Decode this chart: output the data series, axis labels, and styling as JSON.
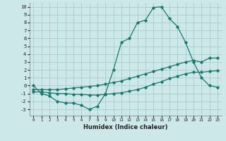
{
  "xlabel": "Humidex (Indice chaleur)",
  "bg_color": "#cce8e8",
  "grid_color": "#aacccc",
  "line_color": "#1a7a6e",
  "xlim": [
    -0.5,
    23.5
  ],
  "ylim": [
    -3.8,
    10.5
  ],
  "xticks": [
    0,
    1,
    2,
    3,
    4,
    5,
    6,
    7,
    8,
    9,
    10,
    11,
    12,
    13,
    14,
    15,
    16,
    17,
    18,
    19,
    20,
    21,
    22,
    23
  ],
  "yticks": [
    -3,
    -2,
    -1,
    0,
    1,
    2,
    3,
    4,
    5,
    6,
    7,
    8,
    9,
    10
  ],
  "line1_x": [
    0,
    1,
    2,
    3,
    4,
    5,
    6,
    7,
    8,
    9,
    10,
    11,
    12,
    13,
    14,
    15,
    16,
    17,
    18,
    19,
    20,
    21,
    22,
    23
  ],
  "line1_y": [
    0,
    -1,
    -1.3,
    -2,
    -2.2,
    -2.2,
    -2.5,
    -3,
    -2.6,
    -1,
    2,
    5.5,
    6.0,
    8.0,
    8.3,
    9.9,
    10.0,
    8.5,
    7.5,
    5.5,
    3.0,
    1.0,
    0.0,
    -0.2
  ],
  "line2_x": [
    0,
    1,
    2,
    3,
    4,
    5,
    6,
    7,
    8,
    9,
    10,
    11,
    12,
    13,
    14,
    15,
    16,
    17,
    18,
    19,
    20,
    21,
    22,
    23
  ],
  "line2_y": [
    -0.5,
    -0.5,
    -0.5,
    -0.5,
    -0.4,
    -0.3,
    -0.2,
    -0.1,
    0.0,
    0.2,
    0.4,
    0.6,
    0.9,
    1.2,
    1.5,
    1.8,
    2.1,
    2.4,
    2.7,
    3.0,
    3.2,
    3.0,
    3.5,
    3.5
  ],
  "line3_x": [
    0,
    1,
    2,
    3,
    4,
    5,
    6,
    7,
    8,
    9,
    10,
    11,
    12,
    13,
    14,
    15,
    16,
    17,
    18,
    19,
    20,
    21,
    22,
    23
  ],
  "line3_y": [
    -0.8,
    -0.8,
    -0.9,
    -1.0,
    -1.0,
    -1.1,
    -1.1,
    -1.2,
    -1.2,
    -1.1,
    -1.0,
    -0.9,
    -0.7,
    -0.5,
    -0.2,
    0.2,
    0.5,
    0.9,
    1.2,
    1.5,
    1.7,
    1.7,
    1.8,
    1.9
  ]
}
